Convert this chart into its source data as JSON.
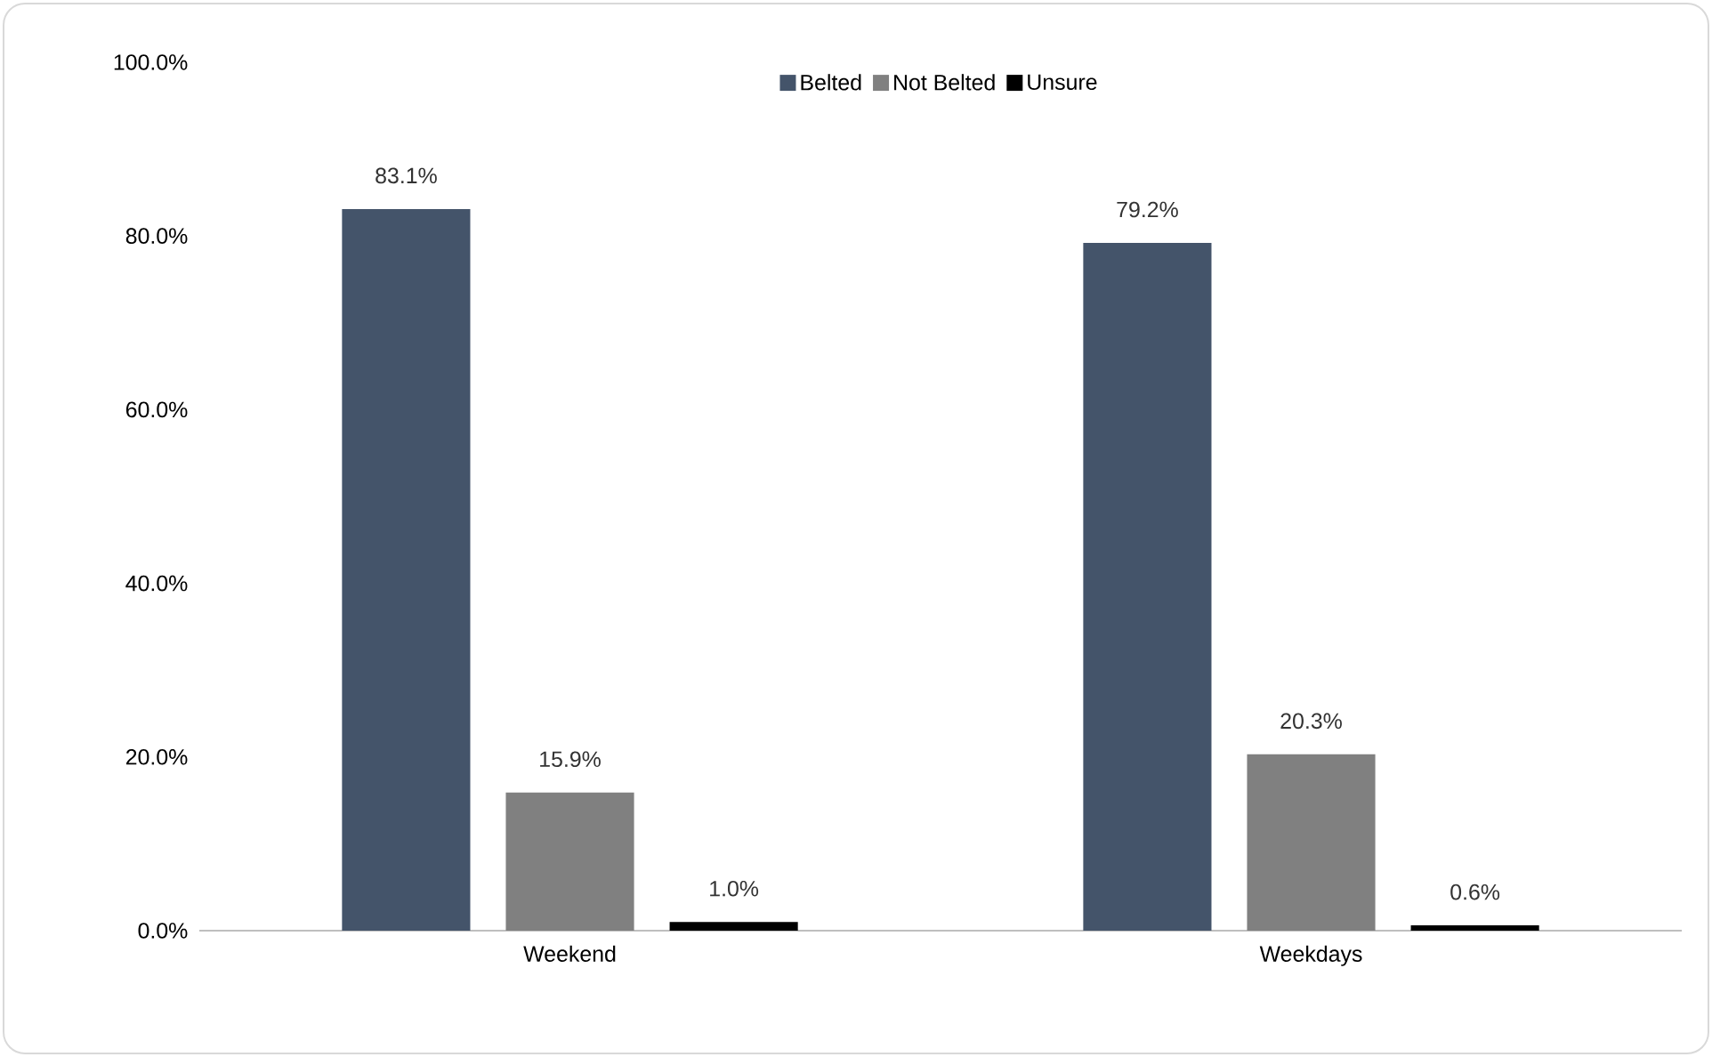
{
  "chart_data": {
    "type": "bar",
    "categories": [
      "Weekend",
      "Weekdays"
    ],
    "series": [
      {
        "name": "Belted",
        "color": "#44546a",
        "values": [
          83.1,
          79.2
        ],
        "value_labels": [
          "83.1%",
          "79.2%"
        ]
      },
      {
        "name": "Not Belted",
        "color": "#808080",
        "values": [
          15.9,
          20.3
        ],
        "value_labels": [
          "15.9%",
          "20.3%"
        ]
      },
      {
        "name": "Unsure",
        "color": "#000000",
        "values": [
          1.0,
          0.6
        ],
        "value_labels": [
          "1.0%",
          "0.6%"
        ]
      }
    ],
    "ylim": [
      0,
      100
    ],
    "yticks": [
      {
        "value": 0,
        "label": "0.0%"
      },
      {
        "value": 20,
        "label": "20.0%"
      },
      {
        "value": 40,
        "label": "40.0%"
      },
      {
        "value": 60,
        "label": "60.0%"
      },
      {
        "value": 80,
        "label": "80.0%"
      },
      {
        "value": 100,
        "label": "100.0%"
      }
    ],
    "legend": "top",
    "grid": false
  }
}
